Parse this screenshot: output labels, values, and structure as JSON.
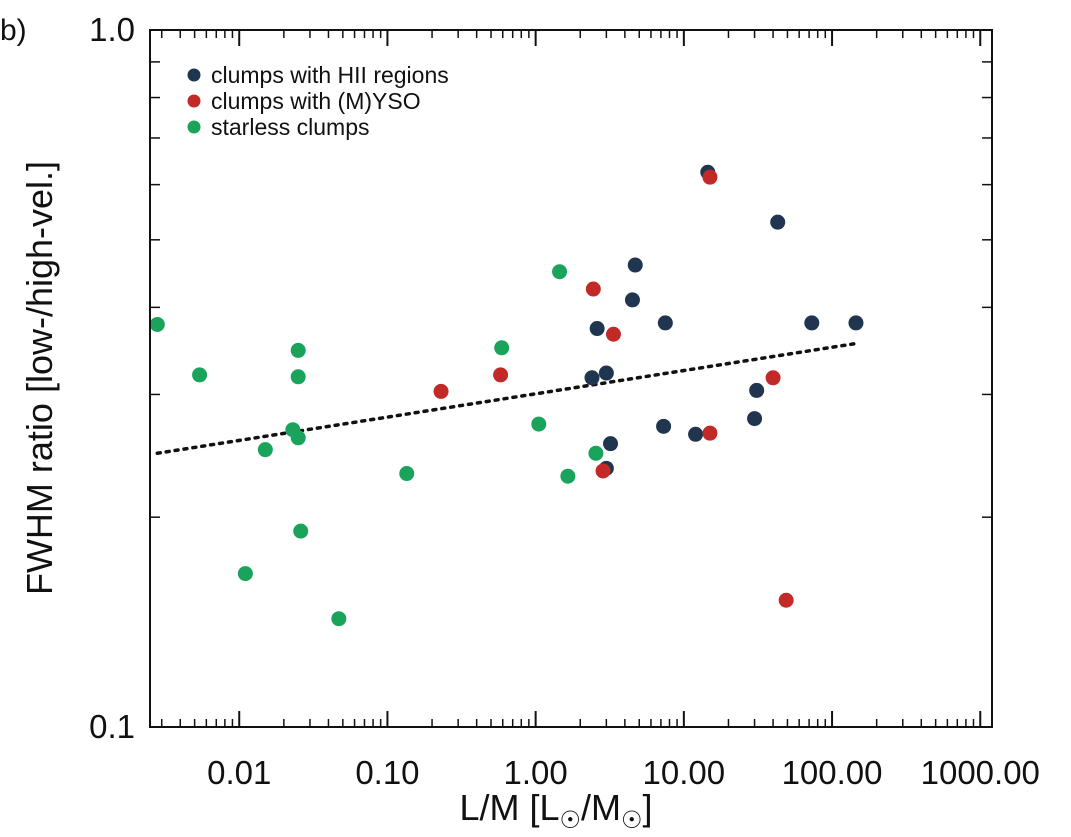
{
  "chart_data": {
    "type": "scatter",
    "panel_label": "b)",
    "xlabel": "L/M [L☉/M☉]",
    "xlabel_parts": {
      "main": "L/M [L",
      "sub1": "☉",
      "mid": "/M",
      "sub2": "☉",
      "end": "]"
    },
    "ylabel": "FWHM ratio [low-/high-vel.]",
    "xscale": "log",
    "yscale": "log",
    "xlim": [
      0.0025,
      1200
    ],
    "ylim": [
      0.1,
      1.0
    ],
    "x_ticks": [
      {
        "value": 0.01,
        "label": "0.01"
      },
      {
        "value": 0.1,
        "label": "0.10"
      },
      {
        "value": 1,
        "label": "1.00"
      },
      {
        "value": 10,
        "label": "10.00"
      },
      {
        "value": 100,
        "label": "100.00"
      },
      {
        "value": 1000,
        "label": "1000.00"
      }
    ],
    "y_ticks": [
      {
        "value": 0.1,
        "label": "0.1"
      },
      {
        "value": 1.0,
        "label": "1.0"
      }
    ],
    "legend_position": "top-left",
    "series": [
      {
        "name": "clumps with HII regions",
        "color": "#1f3550",
        "points": [
          [
            2.6,
            0.373
          ],
          [
            3.0,
            0.322
          ],
          [
            4.5,
            0.41
          ],
          [
            4.7,
            0.46
          ],
          [
            7.5,
            0.38
          ],
          [
            2.4,
            0.317
          ],
          [
            3.2,
            0.255
          ],
          [
            7.3,
            0.27
          ],
          [
            12.0,
            0.263
          ],
          [
            14.5,
            0.625
          ],
          [
            31.0,
            0.304
          ],
          [
            30.0,
            0.277
          ],
          [
            43.0,
            0.53
          ],
          [
            73.0,
            0.38
          ],
          [
            145.0,
            0.38
          ],
          [
            3.0,
            0.235
          ]
        ]
      },
      {
        "name": "clumps with (M)YSO",
        "color": "#c22a27",
        "points": [
          [
            0.23,
            0.303
          ],
          [
            0.58,
            0.32
          ],
          [
            2.45,
            0.425
          ],
          [
            3.35,
            0.366
          ],
          [
            15.0,
            0.264
          ],
          [
            40.0,
            0.317
          ],
          [
            49.0,
            0.152
          ],
          [
            2.85,
            0.233
          ],
          [
            15.0,
            0.615
          ]
        ]
      },
      {
        "name": "starless clumps",
        "color": "#1aa35a",
        "points": [
          [
            0.0028,
            0.378
          ],
          [
            0.0054,
            0.32
          ],
          [
            0.011,
            0.166
          ],
          [
            0.015,
            0.25
          ],
          [
            0.023,
            0.267
          ],
          [
            0.025,
            0.26
          ],
          [
            0.025,
            0.347
          ],
          [
            0.025,
            0.318
          ],
          [
            0.026,
            0.191
          ],
          [
            0.047,
            0.143
          ],
          [
            0.135,
            0.231
          ],
          [
            0.59,
            0.35
          ],
          [
            1.05,
            0.272
          ],
          [
            1.45,
            0.45
          ],
          [
            1.65,
            0.229
          ],
          [
            2.55,
            0.247
          ]
        ]
      }
    ],
    "fit_line": {
      "style": "dotted",
      "x": [
        0.0028,
        145.0
      ],
      "y": [
        0.247,
        0.355
      ]
    }
  }
}
